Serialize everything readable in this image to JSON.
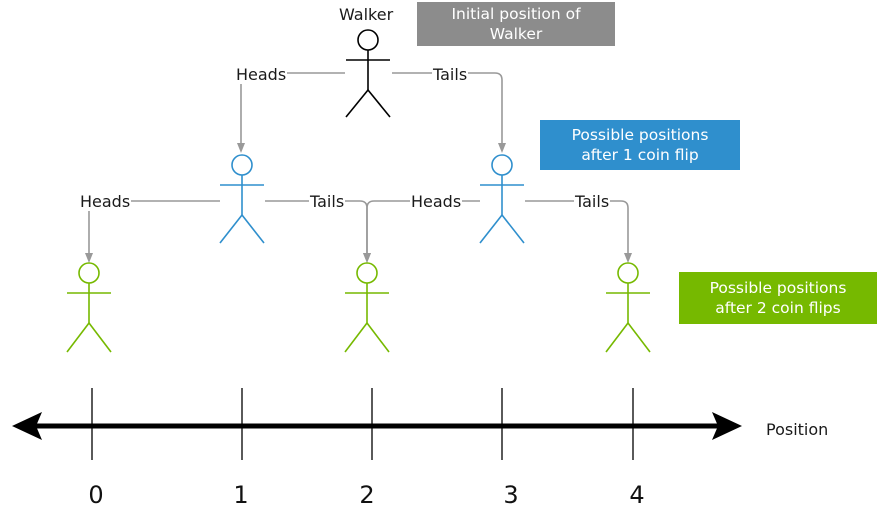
{
  "walker_label": "Walker",
  "legend": {
    "initial": {
      "line1": "Initial position of",
      "line2": "Walker",
      "color": "#8c8c8c"
    },
    "after1": {
      "line1": "Possible positions",
      "line2": "after 1 coin flip",
      "color": "#2f8fcd"
    },
    "after2": {
      "line1": "Possible positions",
      "line2": "after 2 coin flips",
      "color": "#76b900"
    }
  },
  "branch_labels": {
    "heads": "Heads",
    "tails": "Tails"
  },
  "axis": {
    "label": "Position",
    "ticks": [
      "0",
      "1",
      "2",
      "3",
      "4"
    ]
  },
  "colors": {
    "walker": "#000000",
    "level1": "#2f8fcd",
    "level2": "#76b900",
    "connector": "#999999",
    "axis": "#000000"
  }
}
